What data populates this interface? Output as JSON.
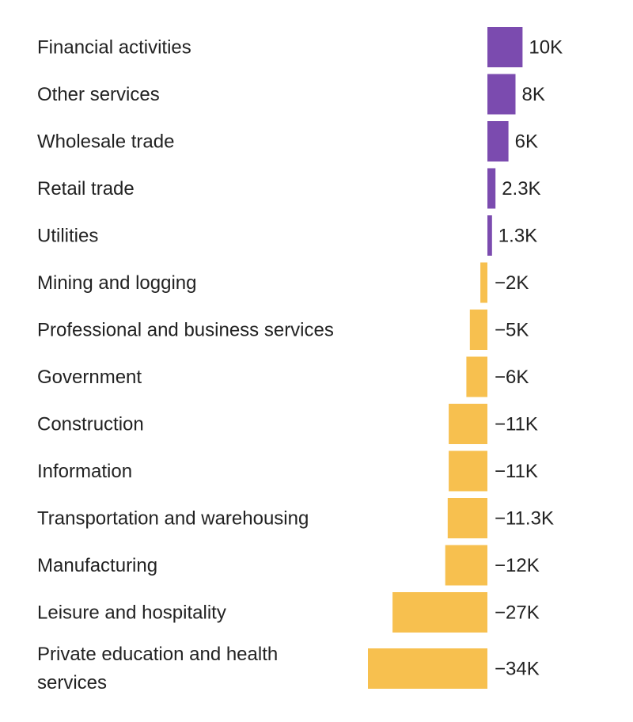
{
  "chart_data": {
    "type": "bar",
    "orientation": "horizontal",
    "title": "",
    "xlabel": "",
    "ylabel": "",
    "grid": false,
    "legend": "none",
    "colors": {
      "positive": "#7B4BAF",
      "negative": "#F7C04F",
      "text": "#222222"
    },
    "categories": [
      "Financial activities",
      "Other services",
      "Wholesale trade",
      "Retail trade",
      "Utilities",
      "Mining and logging",
      "Professional and business services",
      "Government",
      "Construction",
      "Information",
      "Transportation and warehousing",
      "Manufacturing",
      "Leisure and hospitality",
      "Private education and health services"
    ],
    "values": [
      10000,
      8000,
      6000,
      2300,
      1300,
      -2000,
      -5000,
      -6000,
      -11000,
      -11000,
      -11300,
      -12000,
      -27000,
      -34000
    ],
    "value_labels": [
      "10K",
      "8K",
      "6K",
      "2.3K",
      "1.3K",
      "−2K",
      "−5K",
      "−6K",
      "−11K",
      "−11K",
      "−11.3K",
      "−12K",
      "−27K",
      "−34K"
    ],
    "xlim": [
      -34000,
      10000
    ]
  }
}
